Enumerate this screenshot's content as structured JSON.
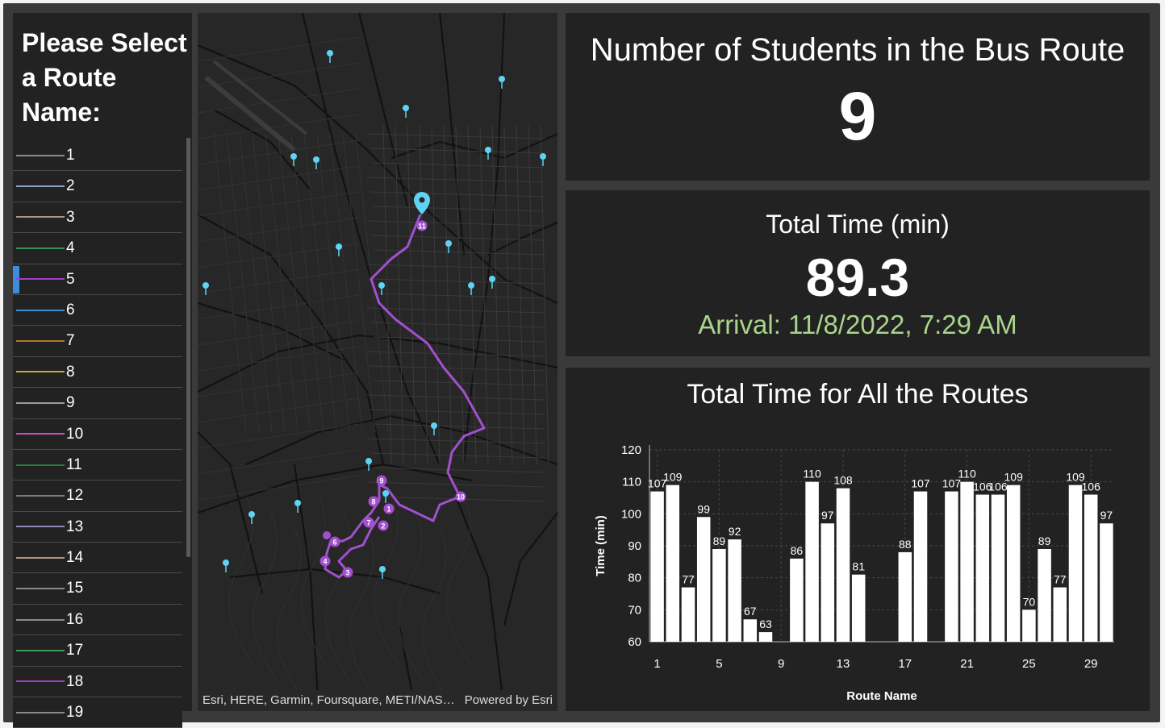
{
  "sidebar": {
    "title": "Please Select a Route Name:",
    "selected": "5",
    "routes": [
      {
        "label": "1",
        "color": "#8a8a8a"
      },
      {
        "label": "2",
        "color": "#8aa0c8"
      },
      {
        "label": "3",
        "color": "#a8987e"
      },
      {
        "label": "4",
        "color": "#3f8f52"
      },
      {
        "label": "5",
        "color": "#a040c8"
      },
      {
        "label": "6",
        "color": "#3b8fd1"
      },
      {
        "label": "7",
        "color": "#b07a2c"
      },
      {
        "label": "8",
        "color": "#c8a82c"
      },
      {
        "label": "9",
        "color": "#9a9a9a"
      },
      {
        "label": "10",
        "color": "#c850b8"
      },
      {
        "label": "11",
        "color": "#2e7a3e"
      },
      {
        "label": "12",
        "color": "#7a7a7a"
      },
      {
        "label": "13",
        "color": "#8c8cb8"
      },
      {
        "label": "14",
        "color": "#a89a78"
      },
      {
        "label": "15",
        "color": "#8a8a8a"
      },
      {
        "label": "16",
        "color": "#8c8c8c"
      },
      {
        "label": "17",
        "color": "#3e9a58"
      },
      {
        "label": "18",
        "color": "#a040c8"
      },
      {
        "label": "19",
        "color": "#8a8a8a"
      }
    ]
  },
  "map": {
    "attribution": "Esri, HERE, Garmin, Foursquare, METI/NAS…",
    "powered_by": "Powered by Esri",
    "route_color": "#a24fd0",
    "pin_color": "#5fd3f3",
    "stop_labels": [
      "1",
      "2",
      "3",
      "4",
      "6",
      "7",
      "8",
      "9",
      "10",
      "11"
    ]
  },
  "students": {
    "title": "Number of Students in the Bus Route",
    "value": "9"
  },
  "time": {
    "title": "Total Time (min)",
    "value": "89.3",
    "arrival": "Arrival: 11/8/2022, 7:29 AM",
    "arrival_color": "#a9d58a"
  },
  "chart_data": {
    "type": "bar",
    "title": "Total Time for All the Routes",
    "xlabel": "Route Name",
    "ylabel": "Time (min)",
    "ylim": [
      60,
      120
    ],
    "yticks": [
      60,
      70,
      80,
      90,
      100,
      110,
      120
    ],
    "xticks": [
      1,
      5,
      9,
      13,
      17,
      21,
      25,
      29
    ],
    "categories": [
      1,
      2,
      3,
      4,
      5,
      6,
      7,
      8,
      9,
      10,
      11,
      12,
      13,
      14,
      15,
      16,
      17,
      18,
      19,
      20,
      21,
      22,
      23,
      24,
      25,
      26,
      27,
      28,
      29,
      30
    ],
    "values": [
      107,
      109,
      77,
      99,
      89,
      92,
      67,
      63,
      null,
      86,
      110,
      97,
      108,
      81,
      null,
      null,
      88,
      107,
      null,
      107,
      110,
      106,
      106,
      109,
      70,
      89,
      77,
      109,
      106,
      97
    ],
    "grid": true,
    "bar_color": "#ffffff"
  }
}
